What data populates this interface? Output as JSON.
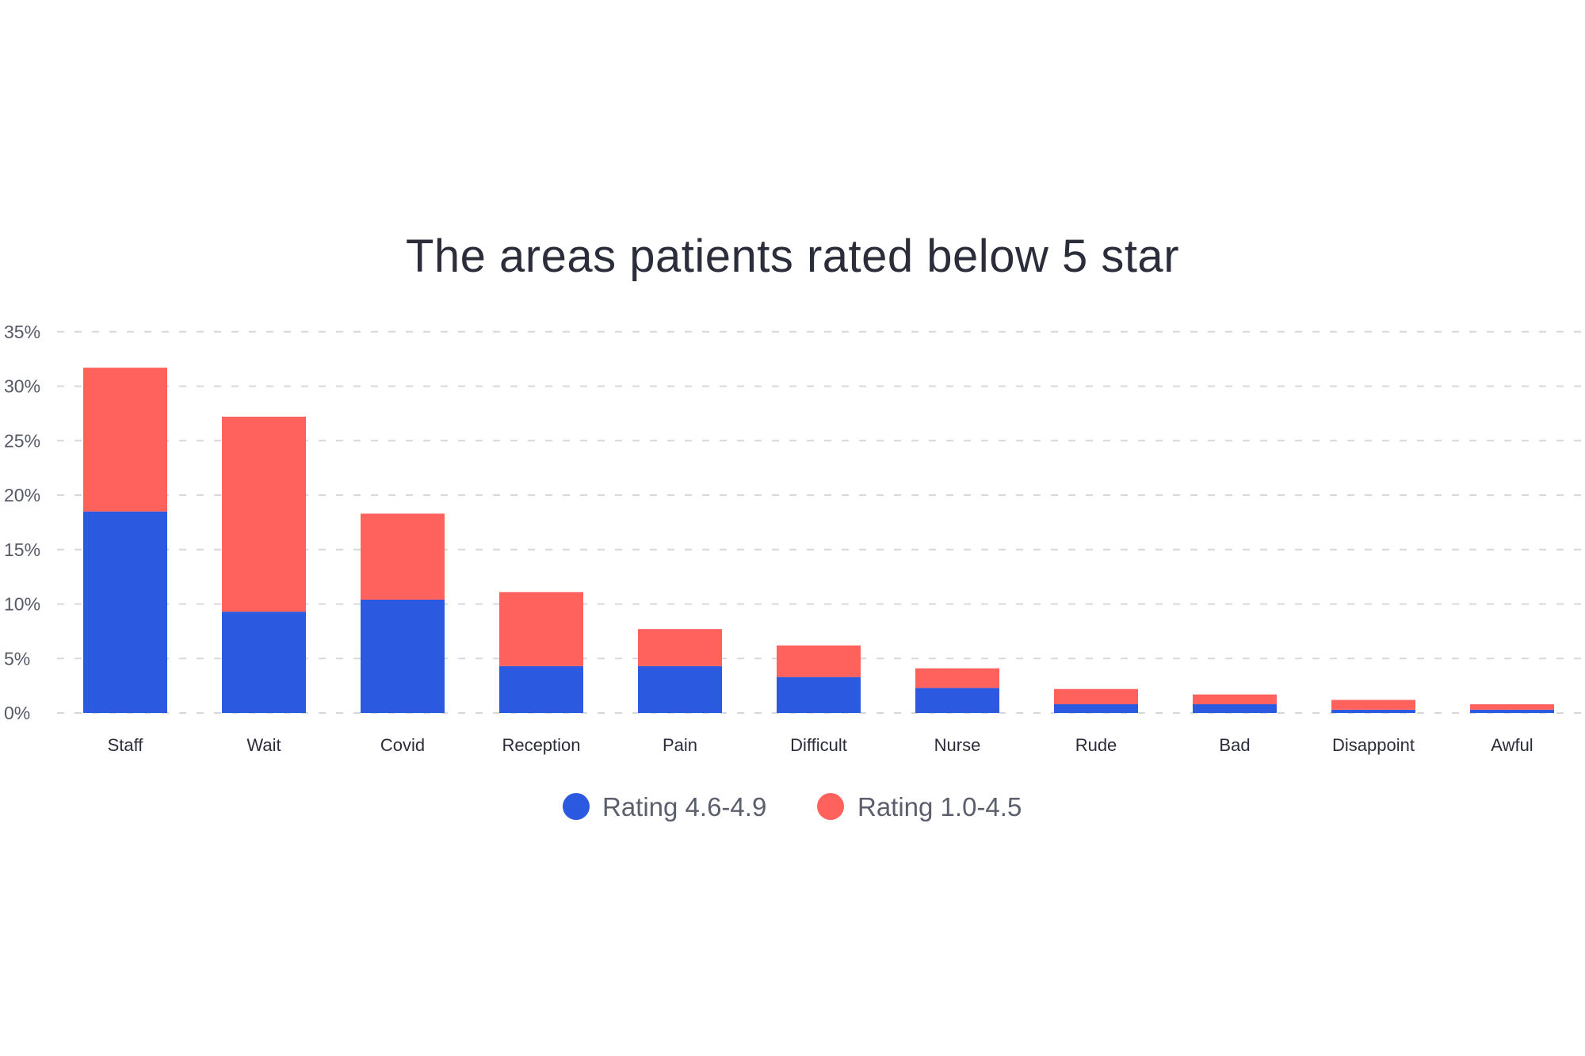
{
  "chart_data": {
    "type": "bar",
    "stacked": true,
    "title": "The areas patients rated below 5 star",
    "xlabel": "",
    "ylabel": "",
    "ylim": [
      0,
      35
    ],
    "yticks": [
      0,
      5,
      10,
      15,
      20,
      25,
      30,
      35
    ],
    "ytick_labels": [
      "0%",
      "5%",
      "10%",
      "15%",
      "20%",
      "25%",
      "30%",
      "35%"
    ],
    "grid": true,
    "legend_position": "bottom-center",
    "categories": [
      "Staff",
      "Wait",
      "Covid",
      "Reception",
      "Pain",
      "Difficult",
      "Nurse",
      "Rude",
      "Bad",
      "Disappoint",
      "Awful"
    ],
    "series": [
      {
        "name": "Rating 4.6-4.9",
        "color": "#2b59e0",
        "values": [
          18.5,
          9.3,
          10.4,
          4.3,
          4.3,
          3.3,
          2.3,
          0.8,
          0.8,
          0.3,
          0.3
        ]
      },
      {
        "name": "Rating 1.0-4.5",
        "color": "#ff625c",
        "values": [
          13.2,
          17.9,
          7.9,
          6.8,
          3.4,
          2.9,
          1.8,
          1.4,
          0.9,
          0.9,
          0.5
        ]
      }
    ]
  }
}
